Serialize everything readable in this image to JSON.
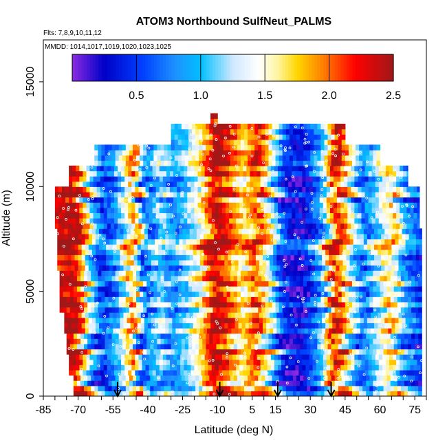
{
  "chart_data": {
    "type": "heatmap",
    "title": "ATOM3 Northbound SulfNeut_PALMS",
    "subtitle_flights": "Flts: 7,8,9,10,11,12",
    "subtitle_dates": "MMDD: 1014,1017,1019,1020,1023,1025",
    "xlabel": "Latitude (deg N)",
    "ylabel": "Altitude (m)",
    "xlim": [
      -85,
      80
    ],
    "ylim": [
      0,
      17000
    ],
    "xticks": [
      -85,
      -70,
      -55,
      -40,
      -25,
      -10,
      5,
      15,
      30,
      45,
      60,
      75
    ],
    "xtick_labels": [
      "-85",
      "-70",
      "-55",
      "-40",
      "-25",
      "-10",
      "5",
      "15",
      "30",
      "45",
      "60",
      "75"
    ],
    "yticks": [
      0,
      5000,
      10000,
      15000
    ],
    "ytick_labels": [
      "0",
      "5000",
      "10000",
      "15000"
    ],
    "colorbar": {
      "range": [
        0,
        2.5
      ],
      "ticks": [
        0.5,
        1.0,
        1.5,
        2.0,
        2.5
      ],
      "tick_labels": [
        "0.5",
        "1.0",
        "1.5",
        "2.0",
        "2.5"
      ],
      "stops": [
        {
          "v": 0.0,
          "color": "#8a2be2"
        },
        {
          "v": 0.25,
          "color": "#0000c8"
        },
        {
          "v": 0.55,
          "color": "#0040ff"
        },
        {
          "v": 0.8,
          "color": "#1e90ff"
        },
        {
          "v": 1.0,
          "color": "#00bfff"
        },
        {
          "v": 1.25,
          "color": "#cfe8ff"
        },
        {
          "v": 1.45,
          "color": "#ffffff"
        },
        {
          "v": 1.6,
          "color": "#fff5a0"
        },
        {
          "v": 1.75,
          "color": "#ffd700"
        },
        {
          "v": 2.0,
          "color": "#ff6a00"
        },
        {
          "v": 2.2,
          "color": "#ff0000"
        },
        {
          "v": 2.5,
          "color": "#a01818"
        }
      ]
    },
    "arrows_latitude": [
      -53,
      -9,
      16,
      39
    ],
    "coverage": [
      {
        "alt": 500,
        "lat_min": -72,
        "lat_max": 78
      },
      {
        "alt": 1500,
        "lat_min": -74,
        "lat_max": 78
      },
      {
        "alt": 2500,
        "lat_min": -75,
        "lat_max": 78
      },
      {
        "alt": 3500,
        "lat_min": -76,
        "lat_max": 78
      },
      {
        "alt": 4500,
        "lat_min": -78,
        "lat_max": 78
      },
      {
        "alt": 5500,
        "lat_min": -78,
        "lat_max": 78
      },
      {
        "alt": 6500,
        "lat_min": -79,
        "lat_max": 78
      },
      {
        "alt": 7500,
        "lat_min": -79,
        "lat_max": 78
      },
      {
        "alt": 8500,
        "lat_min": -80,
        "lat_max": 77
      },
      {
        "alt": 9500,
        "lat_min": -80,
        "lat_max": 77
      },
      {
        "alt": 10500,
        "lat_min": -74,
        "lat_max": 72
      },
      {
        "alt": 11500,
        "lat_min": -63,
        "lat_max": 60
      },
      {
        "alt": 12500,
        "lat_min": -30,
        "lat_max": 45
      },
      {
        "alt": 13300,
        "lat_min": -13,
        "lat_max": -10
      }
    ],
    "lat_profile": [
      {
        "lat": -80,
        "value": 2.4
      },
      {
        "lat": -72,
        "value": 2.5
      },
      {
        "lat": -66,
        "value": 1.3
      },
      {
        "lat": -60,
        "value": 0.5
      },
      {
        "lat": -54,
        "value": 1.0
      },
      {
        "lat": -47,
        "value": 2.0
      },
      {
        "lat": -42,
        "value": 0.6
      },
      {
        "lat": -36,
        "value": 1.3
      },
      {
        "lat": -30,
        "value": 0.8
      },
      {
        "lat": -24,
        "value": 1.2
      },
      {
        "lat": -18,
        "value": 1.6
      },
      {
        "lat": -12,
        "value": 2.5
      },
      {
        "lat": -6,
        "value": 2.1
      },
      {
        "lat": 0,
        "value": 1.6
      },
      {
        "lat": 6,
        "value": 2.2
      },
      {
        "lat": 12,
        "value": 1.4
      },
      {
        "lat": 18,
        "value": 0.4
      },
      {
        "lat": 26,
        "value": 0.3
      },
      {
        "lat": 34,
        "value": 1.0
      },
      {
        "lat": 40,
        "value": 2.4
      },
      {
        "lat": 46,
        "value": 1.5
      },
      {
        "lat": 52,
        "value": 0.7
      },
      {
        "lat": 58,
        "value": 1.3
      },
      {
        "lat": 64,
        "value": 1.8
      },
      {
        "lat": 70,
        "value": 0.9
      },
      {
        "lat": 78,
        "value": 0.5
      }
    ]
  }
}
